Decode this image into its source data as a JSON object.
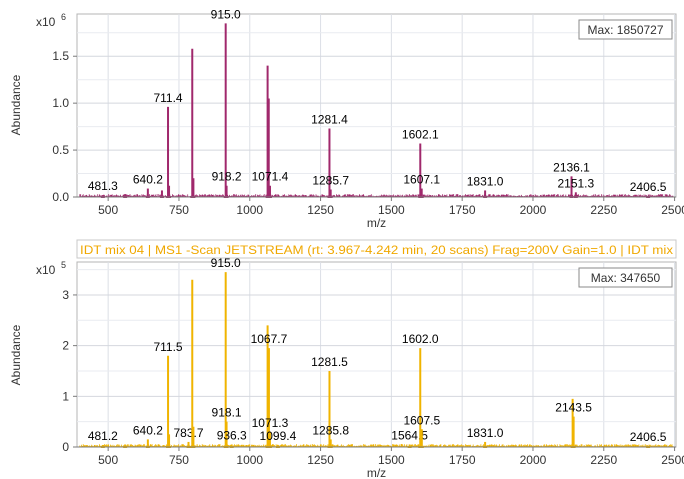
{
  "chart_data": [
    {
      "type": "line",
      "title": "",
      "header": "",
      "max_label": "Max: 1850727",
      "exponent_label": "x10",
      "exponent_power": "6",
      "xlabel": "m/z",
      "ylabel": "Abundance",
      "xlim": [
        390,
        2505
      ],
      "ylim": [
        0,
        1.95
      ],
      "x_ticks": [
        "500",
        "750",
        "1000",
        "1250",
        "1500",
        "1750",
        "2000",
        "2250",
        "2500"
      ],
      "y_ticks": [
        "0.0",
        "0.5",
        "1.0",
        "1.5"
      ],
      "grid": true,
      "color": "#a0286c",
      "series": [
        {
          "peaks": [
            {
              "mz": 481.3,
              "value": 0.02,
              "label": "481.3"
            },
            {
              "mz": 560,
              "value": 0.03
            },
            {
              "mz": 640.2,
              "value": 0.09,
              "label": "640.2"
            },
            {
              "mz": 690,
              "value": 0.07
            },
            {
              "mz": 711.4,
              "value": 0.96,
              "label": "711.4"
            },
            {
              "mz": 715,
              "value": 0.12
            },
            {
              "mz": 797,
              "value": 1.58
            },
            {
              "mz": 801,
              "value": 0.2
            },
            {
              "mz": 915.0,
              "value": 1.85,
              "label": "915.0"
            },
            {
              "mz": 918.2,
              "value": 0.12,
              "label": "918.2"
            },
            {
              "mz": 1063,
              "value": 1.4
            },
            {
              "mz": 1067,
              "value": 1.05
            },
            {
              "mz": 1071.4,
              "value": 0.12,
              "label": "1071.4"
            },
            {
              "mz": 1281.4,
              "value": 0.73,
              "label": "1281.4"
            },
            {
              "mz": 1285.7,
              "value": 0.08,
              "label": "1285.7"
            },
            {
              "mz": 1602.1,
              "value": 0.57,
              "label": "1602.1"
            },
            {
              "mz": 1607.1,
              "value": 0.09,
              "label": "1607.1"
            },
            {
              "mz": 1831.0,
              "value": 0.07,
              "label": "1831.0"
            },
            {
              "mz": 2136.1,
              "value": 0.22,
              "label": "2136.1"
            },
            {
              "mz": 2151.3,
              "value": 0.05,
              "label": "2151.3"
            },
            {
              "mz": 2406.5,
              "value": 0.01,
              "label": "2406.5"
            }
          ]
        }
      ]
    },
    {
      "type": "line",
      "title": "",
      "header": "IDT mix 04 | MS1 -Scan JETSTREAM (rt: 3.967-4.242 min, 20 scans) Frag=200V Gain=1.0 | IDT mix",
      "max_label": "Max: 347650",
      "exponent_label": "x10",
      "exponent_power": "5",
      "xlabel": "m/z",
      "ylabel": "Abundance",
      "xlim": [
        390,
        2505
      ],
      "ylim": [
        0,
        3.65
      ],
      "x_ticks": [
        "500",
        "750",
        "1000",
        "1250",
        "1500",
        "1750",
        "2000",
        "2250",
        "2500"
      ],
      "y_ticks": [
        "0",
        "1",
        "2",
        "3"
      ],
      "grid": true,
      "color": "#f0b400",
      "series": [
        {
          "peaks": [
            {
              "mz": 481.2,
              "value": 0.04,
              "label": "481.2"
            },
            {
              "mz": 560,
              "value": 0.05
            },
            {
              "mz": 640.2,
              "value": 0.15,
              "label": "640.2"
            },
            {
              "mz": 711.5,
              "value": 1.8,
              "label": "711.5"
            },
            {
              "mz": 715,
              "value": 0.25
            },
            {
              "mz": 783.7,
              "value": 0.1,
              "label": "783.7"
            },
            {
              "mz": 797,
              "value": 3.3
            },
            {
              "mz": 801,
              "value": 0.4
            },
            {
              "mz": 915.0,
              "value": 3.45,
              "label": "915.0"
            },
            {
              "mz": 918.1,
              "value": 0.5,
              "label": "918.1"
            },
            {
              "mz": 936.3,
              "value": 0.05,
              "label": "936.3"
            },
            {
              "mz": 1063,
              "value": 2.4
            },
            {
              "mz": 1067.7,
              "value": 1.95,
              "label": "1067.7"
            },
            {
              "mz": 1071.3,
              "value": 0.3,
              "label": "1071.3"
            },
            {
              "mz": 1099.4,
              "value": 0.04,
              "label": "1099.4"
            },
            {
              "mz": 1281.5,
              "value": 1.5,
              "label": "1281.5"
            },
            {
              "mz": 1285.8,
              "value": 0.15,
              "label": "1285.8"
            },
            {
              "mz": 1564.5,
              "value": 0.05,
              "label": "1564.5"
            },
            {
              "mz": 1602.0,
              "value": 1.95,
              "label": "1602.0"
            },
            {
              "mz": 1607.5,
              "value": 0.35,
              "label": "1607.5"
            },
            {
              "mz": 1831.0,
              "value": 0.1,
              "label": "1831.0"
            },
            {
              "mz": 2140,
              "value": 0.95
            },
            {
              "mz": 2143.5,
              "value": 0.6,
              "label": "2143.5"
            },
            {
              "mz": 2406.5,
              "value": 0.02,
              "label": "2406.5"
            }
          ]
        }
      ]
    }
  ]
}
